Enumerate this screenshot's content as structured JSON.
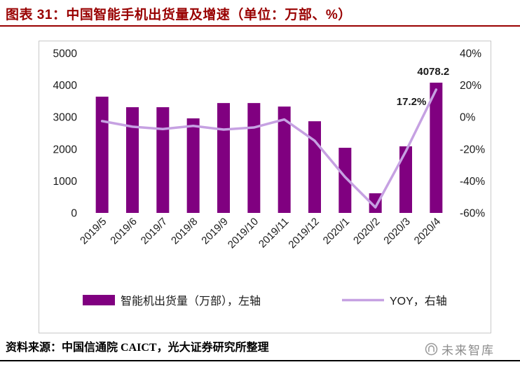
{
  "header": {
    "title": "图表 31：中国智能手机出货量及增速（单位：万部、%）"
  },
  "footer": {
    "source": "资料来源：中国信通院 CAICT，光大证券研究所整理",
    "watermark": "未来智库"
  },
  "colors": {
    "title": "#990000",
    "bar": "#800080",
    "line": "#C6A1E2",
    "axis_text": "#1a1a1a",
    "chart_border": "#c8c8c8"
  },
  "chart_data": {
    "type": "bar+line",
    "title": "中国智能手机出货量及增速",
    "categories": [
      "2019/5",
      "2019/6",
      "2019/7",
      "2019/8",
      "2019/9",
      "2019/10",
      "2019/11",
      "2019/12",
      "2020/1",
      "2020/2",
      "2020/3",
      "2020/4"
    ],
    "series": [
      {
        "name": "智能机出货量（万部），左轴",
        "type": "bar",
        "axis": "left",
        "values": [
          3640,
          3310,
          3310,
          2960,
          3440,
          3440,
          3330,
          2870,
          2040,
          615,
          2085,
          4078.2
        ]
      },
      {
        "name": "YOY，右轴",
        "type": "line",
        "axis": "right",
        "values": [
          -2.5,
          -6,
          -7.5,
          -5.5,
          -7.8,
          -6.5,
          -1.5,
          -14.8,
          -37.5,
          -56.5,
          -21.5,
          17.2
        ]
      }
    ],
    "left_axis": {
      "min": 0,
      "max": 5000,
      "step": 1000,
      "ticks": [
        "0",
        "1000",
        "2000",
        "3000",
        "4000",
        "5000"
      ]
    },
    "right_axis": {
      "min": -60,
      "max": 40,
      "step": 20,
      "suffix": "%",
      "ticks": [
        "-60%",
        "-40%",
        "-20%",
        "0%",
        "20%",
        "40%"
      ]
    },
    "annotations": [
      {
        "text": "4078.2",
        "series": 0,
        "index": 11
      },
      {
        "text": "17.2%",
        "series": 1,
        "index": 11
      }
    ],
    "legend_position": "bottom",
    "grid": false
  }
}
